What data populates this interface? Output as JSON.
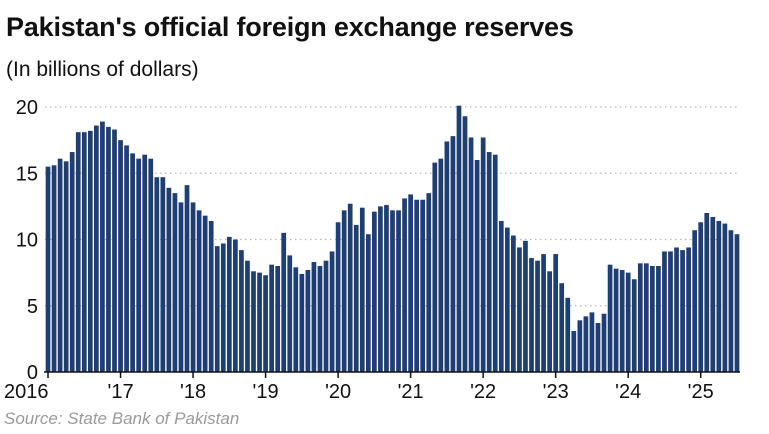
{
  "chart_data": {
    "type": "bar",
    "title": "Pakistan's official foreign exchange reserves",
    "subtitle": "(In billions of dollars)",
    "source": "Source: State Bank of Pakistan",
    "bar_color": "#1f3e73",
    "grid_color": "#b9b9b9",
    "ylim": [
      0,
      20
    ],
    "y_ticks": [
      0,
      5,
      10,
      15,
      20
    ],
    "grid": "dotted horizontal",
    "x_ticks": [
      {
        "label": "2016",
        "month_index": 0
      },
      {
        "label": "'17",
        "month_index": 12
      },
      {
        "label": "'18",
        "month_index": 24
      },
      {
        "label": "'19",
        "month_index": 36
      },
      {
        "label": "'20",
        "month_index": 48
      },
      {
        "label": "'21",
        "month_index": 60
      },
      {
        "label": "'22",
        "month_index": 72
      },
      {
        "label": "'23",
        "month_index": 84
      },
      {
        "label": "'24",
        "month_index": 96
      },
      {
        "label": "'25",
        "month_index": 108
      }
    ],
    "start_month": "2016-01",
    "values": [
      15.5,
      15.6,
      16.1,
      15.9,
      16.6,
      18.1,
      18.1,
      18.2,
      18.6,
      18.9,
      18.5,
      18.3,
      17.5,
      17.1,
      16.5,
      16.1,
      16.4,
      16.1,
      14.7,
      14.7,
      13.9,
      13.5,
      12.8,
      14.1,
      12.8,
      12.2,
      11.8,
      11.4,
      9.5,
      9.7,
      10.2,
      10.0,
      9.2,
      8.4,
      7.6,
      7.5,
      7.3,
      8.1,
      8.0,
      10.5,
      8.8,
      7.9,
      7.4,
      7.7,
      8.3,
      8.0,
      8.4,
      9.1,
      11.3,
      12.2,
      12.7,
      11.1,
      12.4,
      10.4,
      12.1,
      12.5,
      12.6,
      12.2,
      12.2,
      13.1,
      13.4,
      13.0,
      13.0,
      13.5,
      15.8,
      16.1,
      17.4,
      17.8,
      20.1,
      19.3,
      17.7,
      16.0,
      17.7,
      16.6,
      16.4,
      11.4,
      10.9,
      10.3,
      9.4,
      9.9,
      8.6,
      8.4,
      8.9,
      7.6,
      8.9,
      6.7,
      5.6,
      3.1,
      3.9,
      4.2,
      4.5,
      3.7,
      4.4,
      8.1,
      7.8,
      7.7,
      7.5,
      7.0,
      8.2,
      8.2,
      8.0,
      8.0,
      9.1,
      9.1,
      9.4,
      9.2,
      9.4,
      10.7,
      11.3,
      12.0,
      11.7,
      11.4,
      11.2,
      10.7,
      10.4
    ]
  }
}
